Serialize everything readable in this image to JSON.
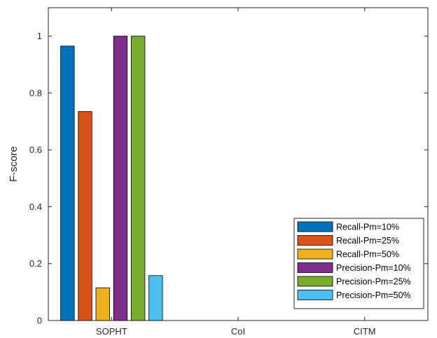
{
  "chart_data": {
    "type": "bar",
    "title": "",
    "xlabel": "",
    "ylabel": "F-score",
    "ylim": [
      0,
      1.1
    ],
    "yticks": [
      0,
      0.2,
      0.4,
      0.6,
      0.8,
      1
    ],
    "ytick_labels": [
      "0",
      "0.2",
      "0.4",
      "0.6",
      "0.8",
      "1"
    ],
    "categories": [
      "SOPHT",
      "CoI",
      "CITM"
    ],
    "grid": false,
    "legend_position": "bottom-right",
    "series": [
      {
        "name": "Recall-Pm=10%",
        "color": "#0072BD",
        "values": [
          0.965,
          null,
          null
        ]
      },
      {
        "name": "Recall-Pm=25%",
        "color": "#D95319",
        "values": [
          0.735,
          null,
          null
        ]
      },
      {
        "name": "Recall-Pm=50%",
        "color": "#EDB120",
        "values": [
          0.115,
          null,
          null
        ]
      },
      {
        "name": "Precision-Pm=10%",
        "color": "#7E2F8E",
        "values": [
          1.0,
          null,
          null
        ]
      },
      {
        "name": "Precision-Pm=25%",
        "color": "#77AC30",
        "values": [
          1.0,
          null,
          null
        ]
      },
      {
        "name": "Precision-Pm=50%",
        "color": "#4DBEEE",
        "values": [
          0.158,
          null,
          null
        ]
      }
    ]
  }
}
